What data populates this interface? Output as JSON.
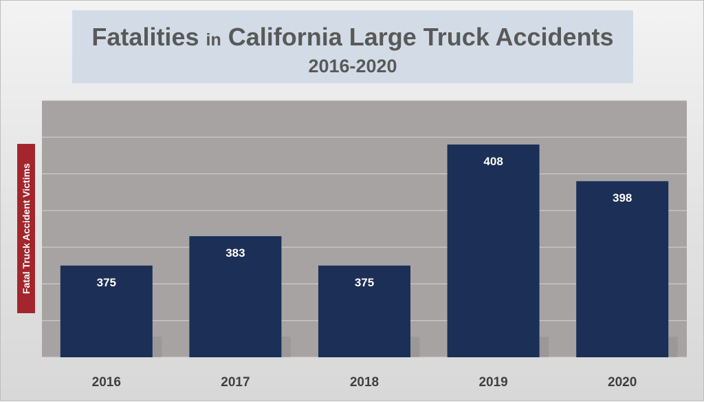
{
  "chart_data": {
    "type": "bar",
    "title_part1": "Fatalities",
    "title_part2": "in",
    "title_part3": "California Large Truck Accidents",
    "subtitle": "2016-2020",
    "ylabel": "Fatal Truck Accident Victims",
    "categories": [
      "2016",
      "2017",
      "2018",
      "2019",
      "2020"
    ],
    "values": [
      375,
      383,
      375,
      408,
      398
    ],
    "ylim": [
      350,
      420
    ],
    "grid": true,
    "colors": {
      "bar": "#1b2f57",
      "plot_background": "#a7a3a2",
      "gridline": "#d6d4d3",
      "title_box": "#d3dce6",
      "title_text": "#595959",
      "ylabel_background": "#a3262c"
    }
  }
}
